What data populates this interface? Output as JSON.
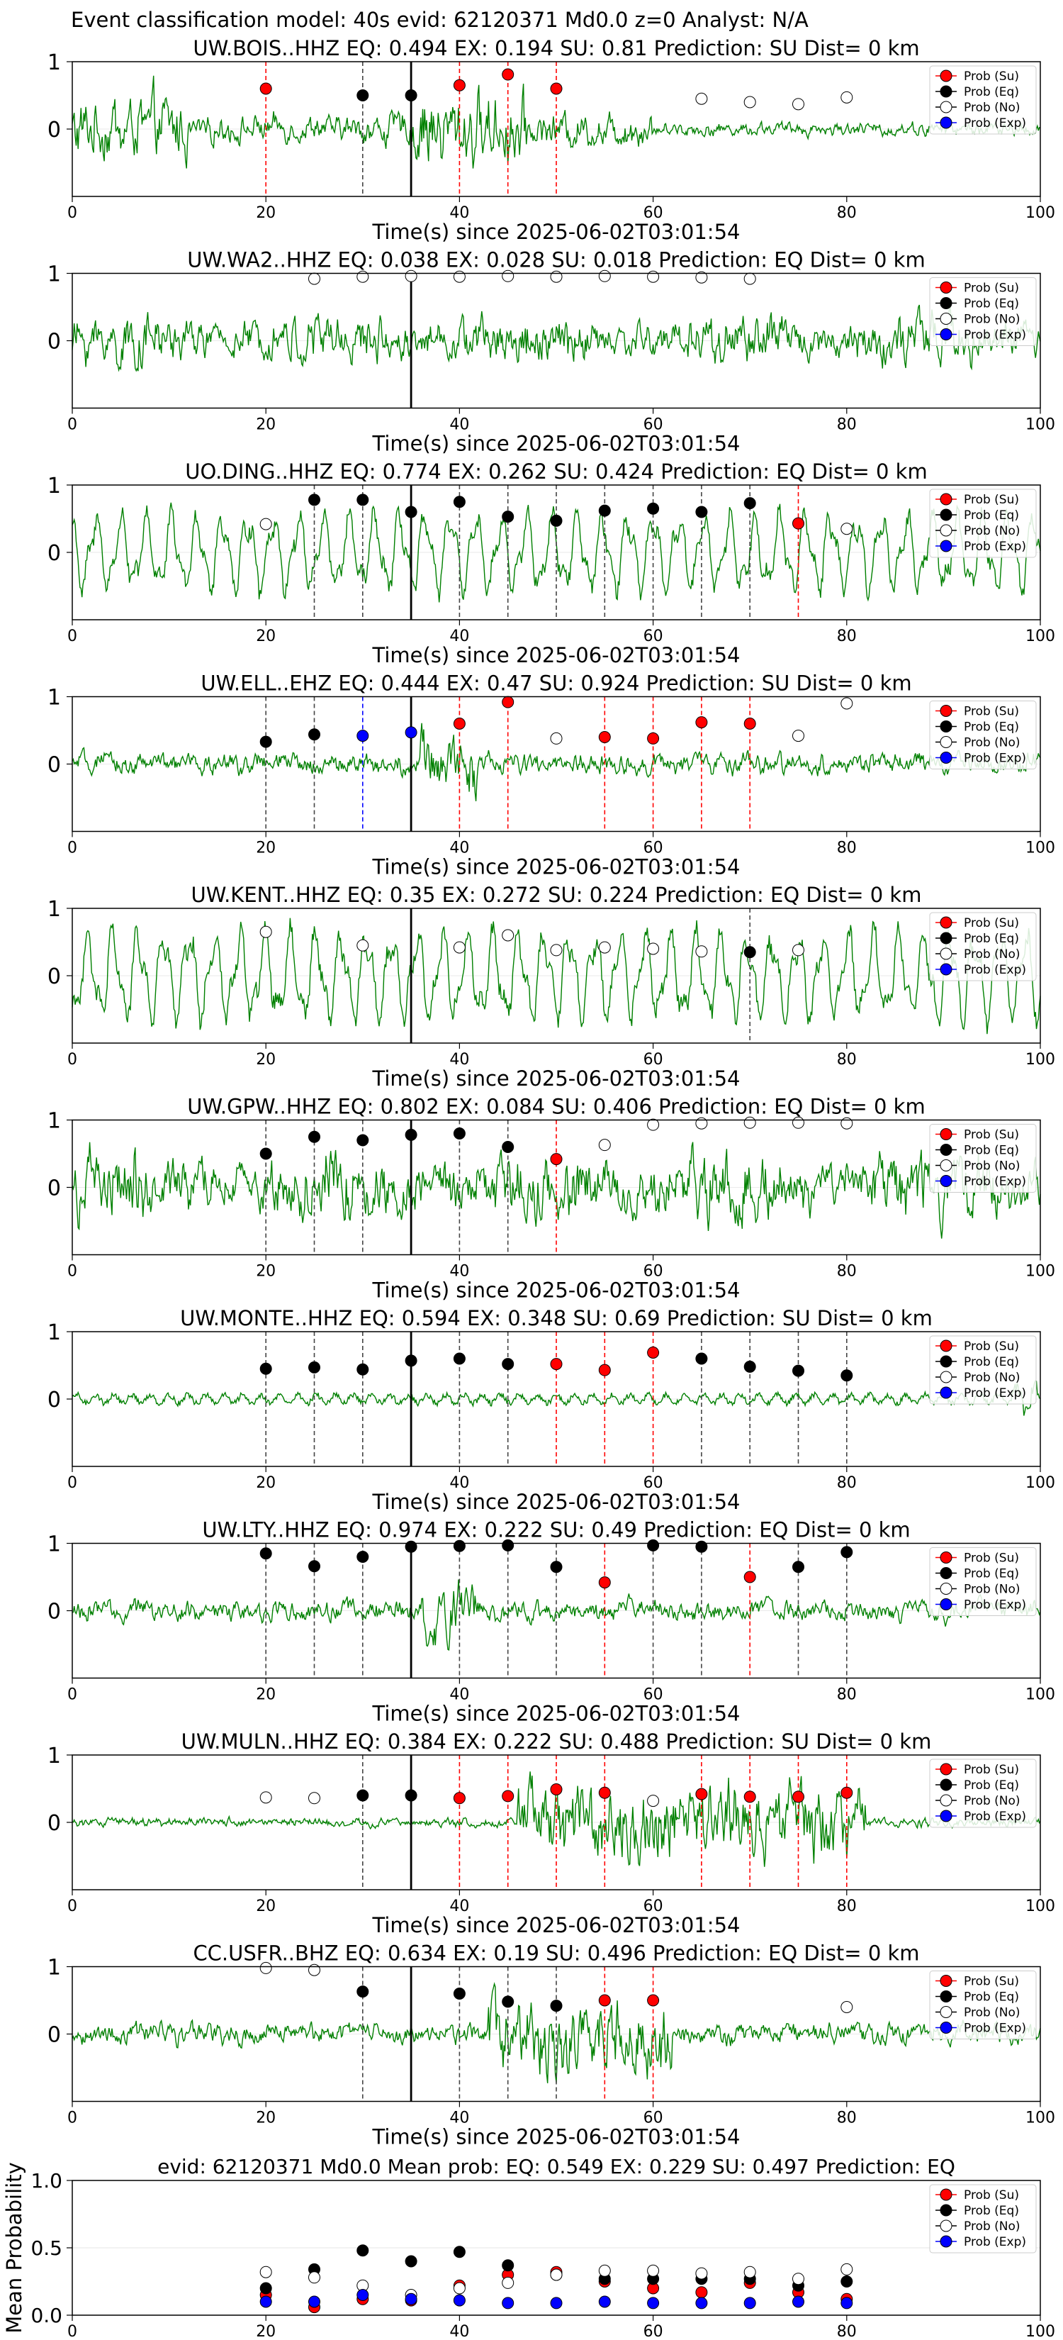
{
  "figure": {
    "suptitle": "Event classification model: 40s evid: 62120371 Md0.0 z=0 Analyst: N/A",
    "xlabel": "Time(s) since 2025-06-02T03:01:54",
    "legend": [
      {
        "label": "Prob (Su)",
        "color": "#ff0000",
        "fill": "#ff0000"
      },
      {
        "label": "Prob (Eq)",
        "color": "#000000",
        "fill": "#000000"
      },
      {
        "label": "Prob (No)",
        "color": "#000000",
        "fill": "#ffffff"
      },
      {
        "label": "Prob (Exp)",
        "color": "#0000ff",
        "fill": "#0000ff"
      }
    ],
    "colors": {
      "trace": "#008000",
      "su": "#ff0000",
      "eq": "#000000",
      "no": "#ffffff",
      "exp": "#0000ff",
      "event_line": "#000000"
    }
  },
  "chart_data": [
    {
      "type": "line",
      "title": "UW.BOIS..HHZ   EQ: 0.494  EX: 0.194  SU: 0.81   Prediction: SU    Dist= 0 km",
      "xlim": [
        0,
        100
      ],
      "ylim": [
        -1,
        1
      ],
      "yticks": [
        0,
        1
      ],
      "xticks": [
        0,
        20,
        40,
        60,
        80,
        100
      ],
      "event_time": 35,
      "trace_style": "spiky",
      "trace_amp": 0.75,
      "points": [
        {
          "t": 20,
          "p": 0.6,
          "c": "su"
        },
        {
          "t": 30,
          "p": 0.5,
          "c": "eq"
        },
        {
          "t": 35,
          "p": 0.5,
          "c": "eq"
        },
        {
          "t": 40,
          "p": 0.65,
          "c": "su"
        },
        {
          "t": 45,
          "p": 0.81,
          "c": "su"
        },
        {
          "t": 50,
          "p": 0.6,
          "c": "su"
        },
        {
          "t": 65,
          "p": 0.45,
          "c": "no"
        },
        {
          "t": 70,
          "p": 0.4,
          "c": "no"
        },
        {
          "t": 75,
          "p": 0.37,
          "c": "no"
        },
        {
          "t": 80,
          "p": 0.47,
          "c": "no"
        }
      ]
    },
    {
      "type": "line",
      "title": "UW.WA2..HHZ   EQ: 0.038  EX: 0.028  SU: 0.018   Prediction: EQ    Dist= 0 km",
      "xlim": [
        0,
        100
      ],
      "ylim": [
        -1,
        1
      ],
      "yticks": [
        0,
        1
      ],
      "xticks": [
        0,
        20,
        40,
        60,
        80,
        100
      ],
      "event_time": 35,
      "trace_style": "noise",
      "trace_amp": 0.55,
      "points": [
        {
          "t": 25,
          "p": 0.92,
          "c": "no"
        },
        {
          "t": 30,
          "p": 0.95,
          "c": "no"
        },
        {
          "t": 35,
          "p": 0.96,
          "c": "no"
        },
        {
          "t": 40,
          "p": 0.95,
          "c": "no"
        },
        {
          "t": 45,
          "p": 0.96,
          "c": "no"
        },
        {
          "t": 50,
          "p": 0.95,
          "c": "no"
        },
        {
          "t": 55,
          "p": 0.96,
          "c": "no"
        },
        {
          "t": 60,
          "p": 0.95,
          "c": "no"
        },
        {
          "t": 65,
          "p": 0.94,
          "c": "no"
        },
        {
          "t": 70,
          "p": 0.92,
          "c": "no"
        }
      ]
    },
    {
      "type": "line",
      "title": "UO.DING..HHZ   EQ: 0.774  EX: 0.262  SU: 0.424   Prediction: EQ    Dist= 0 km",
      "xlim": [
        0,
        100
      ],
      "ylim": [
        -1,
        1
      ],
      "yticks": [
        0,
        1
      ],
      "xticks": [
        0,
        20,
        40,
        60,
        80,
        100
      ],
      "event_time": 35,
      "trace_style": "wave",
      "trace_amp": 0.65,
      "points": [
        {
          "t": 20,
          "p": 0.42,
          "c": "no"
        },
        {
          "t": 25,
          "p": 0.78,
          "c": "eq"
        },
        {
          "t": 30,
          "p": 0.78,
          "c": "eq"
        },
        {
          "t": 35,
          "p": 0.6,
          "c": "eq"
        },
        {
          "t": 40,
          "p": 0.75,
          "c": "eq"
        },
        {
          "t": 45,
          "p": 0.53,
          "c": "eq"
        },
        {
          "t": 50,
          "p": 0.47,
          "c": "eq"
        },
        {
          "t": 55,
          "p": 0.62,
          "c": "eq"
        },
        {
          "t": 60,
          "p": 0.65,
          "c": "eq"
        },
        {
          "t": 65,
          "p": 0.6,
          "c": "eq"
        },
        {
          "t": 70,
          "p": 0.73,
          "c": "eq"
        },
        {
          "t": 75,
          "p": 0.43,
          "c": "su"
        },
        {
          "t": 80,
          "p": 0.35,
          "c": "no"
        }
      ]
    },
    {
      "type": "line",
      "title": "UW.ELL..EHZ   EQ: 0.444  EX: 0.47  SU: 0.924   Prediction: SU    Dist= 0 km",
      "xlim": [
        0,
        100
      ],
      "ylim": [
        -1,
        1
      ],
      "yticks": [
        0,
        1
      ],
      "xticks": [
        0,
        20,
        40,
        60,
        80,
        100
      ],
      "event_time": 35,
      "trace_style": "burst",
      "trace_amp": 0.6,
      "points": [
        {
          "t": 20,
          "p": 0.33,
          "c": "eq"
        },
        {
          "t": 25,
          "p": 0.44,
          "c": "eq"
        },
        {
          "t": 30,
          "p": 0.42,
          "c": "exp"
        },
        {
          "t": 35,
          "p": 0.47,
          "c": "exp"
        },
        {
          "t": 40,
          "p": 0.6,
          "c": "su"
        },
        {
          "t": 45,
          "p": 0.92,
          "c": "su"
        },
        {
          "t": 50,
          "p": 0.38,
          "c": "no"
        },
        {
          "t": 55,
          "p": 0.4,
          "c": "su"
        },
        {
          "t": 60,
          "p": 0.38,
          "c": "su"
        },
        {
          "t": 65,
          "p": 0.62,
          "c": "su"
        },
        {
          "t": 70,
          "p": 0.6,
          "c": "su"
        },
        {
          "t": 75,
          "p": 0.42,
          "c": "no"
        },
        {
          "t": 80,
          "p": 0.9,
          "c": "no"
        }
      ]
    },
    {
      "type": "line",
      "title": "UW.KENT..HHZ   EQ: 0.35  EX: 0.272  SU: 0.224   Prediction: EQ    Dist= 0 km",
      "xlim": [
        0,
        100
      ],
      "ylim": [
        -1,
        1
      ],
      "yticks": [
        0,
        1
      ],
      "xticks": [
        0,
        20,
        40,
        60,
        80,
        100
      ],
      "event_time": 35,
      "trace_style": "wave",
      "trace_amp": 0.75,
      "points": [
        {
          "t": 20,
          "p": 0.65,
          "c": "no"
        },
        {
          "t": 30,
          "p": 0.45,
          "c": "no"
        },
        {
          "t": 40,
          "p": 0.42,
          "c": "no"
        },
        {
          "t": 45,
          "p": 0.6,
          "c": "no"
        },
        {
          "t": 50,
          "p": 0.38,
          "c": "no"
        },
        {
          "t": 55,
          "p": 0.42,
          "c": "no"
        },
        {
          "t": 60,
          "p": 0.4,
          "c": "no"
        },
        {
          "t": 65,
          "p": 0.36,
          "c": "no"
        },
        {
          "t": 70,
          "p": 0.35,
          "c": "eq"
        },
        {
          "t": 75,
          "p": 0.38,
          "c": "no"
        }
      ]
    },
    {
      "type": "line",
      "title": "UW.GPW..HHZ   EQ: 0.802  EX: 0.084  SU: 0.406   Prediction: EQ    Dist= 0 km",
      "xlim": [
        0,
        100
      ],
      "ylim": [
        -1,
        1
      ],
      "yticks": [
        0,
        1
      ],
      "xticks": [
        0,
        20,
        40,
        60,
        80,
        100
      ],
      "event_time": 35,
      "trace_style": "noise",
      "trace_amp": 0.75,
      "points": [
        {
          "t": 20,
          "p": 0.5,
          "c": "eq"
        },
        {
          "t": 25,
          "p": 0.75,
          "c": "eq"
        },
        {
          "t": 30,
          "p": 0.7,
          "c": "eq"
        },
        {
          "t": 35,
          "p": 0.78,
          "c": "eq"
        },
        {
          "t": 40,
          "p": 0.8,
          "c": "eq"
        },
        {
          "t": 45,
          "p": 0.6,
          "c": "eq"
        },
        {
          "t": 50,
          "p": 0.42,
          "c": "su"
        },
        {
          "t": 55,
          "p": 0.63,
          "c": "no"
        },
        {
          "t": 60,
          "p": 0.93,
          "c": "no"
        },
        {
          "t": 65,
          "p": 0.95,
          "c": "no"
        },
        {
          "t": 70,
          "p": 0.96,
          "c": "no"
        },
        {
          "t": 75,
          "p": 0.96,
          "c": "no"
        },
        {
          "t": 80,
          "p": 0.95,
          "c": "no"
        }
      ]
    },
    {
      "type": "line",
      "title": "UW.MONTE..HHZ   EQ: 0.594  EX: 0.348  SU: 0.69   Prediction: SU    Dist= 0 km",
      "xlim": [
        0,
        100
      ],
      "ylim": [
        -1,
        1
      ],
      "yticks": [
        0,
        1
      ],
      "xticks": [
        0,
        20,
        40,
        60,
        80,
        100
      ],
      "event_time": 35,
      "trace_style": "small",
      "trace_amp": 0.3,
      "points": [
        {
          "t": 20,
          "p": 0.45,
          "c": "eq"
        },
        {
          "t": 25,
          "p": 0.47,
          "c": "eq"
        },
        {
          "t": 30,
          "p": 0.44,
          "c": "eq"
        },
        {
          "t": 35,
          "p": 0.57,
          "c": "eq"
        },
        {
          "t": 40,
          "p": 0.6,
          "c": "eq"
        },
        {
          "t": 45,
          "p": 0.52,
          "c": "eq"
        },
        {
          "t": 50,
          "p": 0.52,
          "c": "su"
        },
        {
          "t": 55,
          "p": 0.43,
          "c": "su"
        },
        {
          "t": 60,
          "p": 0.69,
          "c": "su"
        },
        {
          "t": 65,
          "p": 0.6,
          "c": "eq"
        },
        {
          "t": 70,
          "p": 0.48,
          "c": "eq"
        },
        {
          "t": 75,
          "p": 0.42,
          "c": "eq"
        },
        {
          "t": 80,
          "p": 0.35,
          "c": "eq"
        }
      ]
    },
    {
      "type": "line",
      "title": "UW.LTY..HHZ   EQ: 0.974  EX: 0.222  SU: 0.49   Prediction: EQ    Dist= 0 km",
      "xlim": [
        0,
        100
      ],
      "ylim": [
        -1,
        1
      ],
      "yticks": [
        0,
        1
      ],
      "xticks": [
        0,
        20,
        40,
        60,
        80,
        100
      ],
      "event_time": 35,
      "trace_style": "burst",
      "trace_amp": 0.6,
      "points": [
        {
          "t": 20,
          "p": 0.85,
          "c": "eq"
        },
        {
          "t": 25,
          "p": 0.66,
          "c": "eq"
        },
        {
          "t": 30,
          "p": 0.8,
          "c": "eq"
        },
        {
          "t": 35,
          "p": 0.95,
          "c": "eq"
        },
        {
          "t": 40,
          "p": 0.96,
          "c": "eq"
        },
        {
          "t": 45,
          "p": 0.97,
          "c": "eq"
        },
        {
          "t": 50,
          "p": 0.65,
          "c": "eq"
        },
        {
          "t": 55,
          "p": 0.42,
          "c": "su"
        },
        {
          "t": 60,
          "p": 0.97,
          "c": "eq"
        },
        {
          "t": 65,
          "p": 0.95,
          "c": "eq"
        },
        {
          "t": 70,
          "p": 0.5,
          "c": "su"
        },
        {
          "t": 75,
          "p": 0.65,
          "c": "eq"
        },
        {
          "t": 80,
          "p": 0.87,
          "c": "eq"
        }
      ]
    },
    {
      "type": "line",
      "title": "UW.MULN..HHZ   EQ: 0.384  EX: 0.222  SU: 0.488   Prediction: SU    Dist= 0 km",
      "xlim": [
        0,
        100
      ],
      "ylim": [
        -1,
        1
      ],
      "yticks": [
        0,
        1
      ],
      "xticks": [
        0,
        20,
        40,
        60,
        80,
        100
      ],
      "event_time": 35,
      "trace_style": "late",
      "trace_amp": 0.75,
      "points": [
        {
          "t": 20,
          "p": 0.37,
          "c": "no"
        },
        {
          "t": 25,
          "p": 0.36,
          "c": "no"
        },
        {
          "t": 30,
          "p": 0.4,
          "c": "eq"
        },
        {
          "t": 35,
          "p": 0.4,
          "c": "eq"
        },
        {
          "t": 40,
          "p": 0.36,
          "c": "su"
        },
        {
          "t": 45,
          "p": 0.39,
          "c": "su"
        },
        {
          "t": 50,
          "p": 0.49,
          "c": "su"
        },
        {
          "t": 55,
          "p": 0.44,
          "c": "su"
        },
        {
          "t": 60,
          "p": 0.32,
          "c": "no"
        },
        {
          "t": 65,
          "p": 0.42,
          "c": "su"
        },
        {
          "t": 70,
          "p": 0.38,
          "c": "su"
        },
        {
          "t": 75,
          "p": 0.38,
          "c": "su"
        },
        {
          "t": 80,
          "p": 0.44,
          "c": "su"
        }
      ]
    },
    {
      "type": "line",
      "title": "CC.USFR..BHZ   EQ: 0.634  EX: 0.19  SU: 0.496   Prediction: EQ    Dist= 0 km",
      "xlim": [
        0,
        100
      ],
      "ylim": [
        -1,
        1
      ],
      "yticks": [
        0,
        1
      ],
      "xticks": [
        0,
        20,
        40,
        60,
        80,
        100
      ],
      "event_time": 35,
      "trace_style": "mid",
      "trace_amp": 0.75,
      "points": [
        {
          "t": 20,
          "p": 0.98,
          "c": "no"
        },
        {
          "t": 25,
          "p": 0.95,
          "c": "no"
        },
        {
          "t": 30,
          "p": 0.63,
          "c": "eq"
        },
        {
          "t": 40,
          "p": 0.6,
          "c": "eq"
        },
        {
          "t": 45,
          "p": 0.48,
          "c": "eq"
        },
        {
          "t": 50,
          "p": 0.42,
          "c": "eq"
        },
        {
          "t": 55,
          "p": 0.5,
          "c": "su"
        },
        {
          "t": 60,
          "p": 0.5,
          "c": "su"
        },
        {
          "t": 80,
          "p": 0.4,
          "c": "no"
        }
      ]
    },
    {
      "type": "scatter",
      "title": "evid: 62120371  Md0.0   Mean prob:   EQ: 0.549  EX: 0.229  SU: 0.497   Prediction: EQ",
      "ylabel": "Mean Probability",
      "xlim": [
        0,
        100
      ],
      "ylim": [
        0,
        1
      ],
      "yticks": [
        0,
        0.5,
        1
      ],
      "ytick_labels": [
        "0.0",
        "0.5",
        "1.0"
      ],
      "xticks": [
        0,
        20,
        40,
        60,
        80,
        100
      ],
      "x": [
        20,
        25,
        30,
        35,
        40,
        45,
        50,
        55,
        60,
        65,
        70,
        75,
        80
      ],
      "series": [
        {
          "name": "Prob (Su)",
          "key": "su",
          "values": [
            0.15,
            0.06,
            0.12,
            0.11,
            0.22,
            0.3,
            0.32,
            0.25,
            0.2,
            0.17,
            0.24,
            0.17,
            0.12
          ]
        },
        {
          "name": "Prob (Eq)",
          "key": "eq",
          "values": [
            0.2,
            0.34,
            0.48,
            0.4,
            0.47,
            0.37,
            0.3,
            0.27,
            0.27,
            0.27,
            0.27,
            0.22,
            0.25
          ]
        },
        {
          "name": "Prob (No)",
          "key": "no",
          "values": [
            0.32,
            0.28,
            0.22,
            0.15,
            0.2,
            0.24,
            0.3,
            0.33,
            0.33,
            0.31,
            0.32,
            0.27,
            0.34
          ]
        },
        {
          "name": "Prob (Exp)",
          "key": "exp",
          "values": [
            0.1,
            0.1,
            0.15,
            0.12,
            0.11,
            0.09,
            0.09,
            0.1,
            0.09,
            0.09,
            0.09,
            0.1,
            0.09
          ]
        }
      ]
    }
  ]
}
